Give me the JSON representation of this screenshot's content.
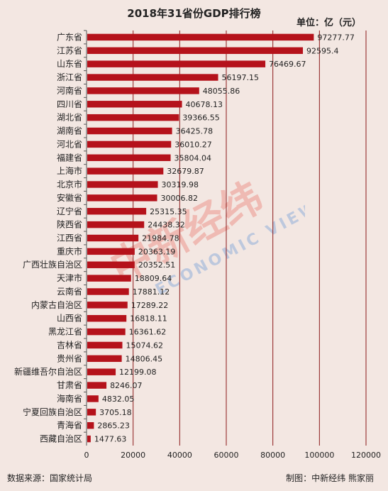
{
  "header": {
    "title": "2018年31省份GDP排行榜",
    "unit": "单位：亿（元）"
  },
  "footer": {
    "source": "数据来源：国家统计局",
    "credit": "制图：中新经纬  熊家丽"
  },
  "watermark": {
    "text_cn": "中新经纬",
    "text_en": "ECONOMIC VIEW"
  },
  "colors": {
    "bar": "#b5121b",
    "background": "#f3e7e2",
    "grid": "#8b1a1a"
  },
  "chart_data": {
    "type": "bar",
    "orientation": "horizontal",
    "title": "2018年31省份GDP排行榜",
    "xlim": [
      0,
      120000
    ],
    "xticks": [
      0,
      20000,
      40000,
      60000,
      80000,
      100000,
      120000
    ],
    "xtick_labels": [
      "0",
      "20000",
      "40000",
      "60000",
      "80000",
      "100000",
      "120000"
    ],
    "grid": true,
    "categories": [
      "广东省",
      "江苏省",
      "山东省",
      "浙江省",
      "河南省",
      "四川省",
      "湖北省",
      "湖南省",
      "河北省",
      "福建省",
      "上海市",
      "北京市",
      "安徽省",
      "辽宁省",
      "陕西省",
      "江西省",
      "重庆市",
      "广西壮族自治区",
      "天津市",
      "云南省",
      "内蒙古自治区",
      "山西省",
      "黑龙江省",
      "吉林省",
      "贵州省",
      "新疆维吾尔自治区",
      "甘肃省",
      "海南省",
      "宁夏回族自治区",
      "青海省",
      "西藏自治区"
    ],
    "values": [
      97277.77,
      92595.4,
      76469.67,
      56197.15,
      48055.86,
      40678.13,
      39366.55,
      36425.78,
      36010.27,
      35804.04,
      32679.87,
      30319.98,
      30006.82,
      25315.35,
      24438.32,
      21984.78,
      20363.19,
      20352.51,
      18809.64,
      17881.12,
      17289.22,
      16818.11,
      16361.62,
      15074.62,
      14806.45,
      12199.08,
      8246.07,
      4832.05,
      3705.18,
      2865.23,
      1477.63
    ],
    "value_labels": [
      "97277.77",
      "92595.4",
      "76469.67",
      "56197.15",
      "48055.86",
      "40678.13",
      "39366.55",
      "36425.78",
      "36010.27",
      "35804.04",
      "32679.87",
      "30319.98",
      "30006.82",
      "25315.35",
      "24438.32",
      "21984.78",
      "20363.19",
      "20352.51",
      "18809.64",
      "17881.12",
      "17289.22",
      "16818.11",
      "16361.62",
      "15074.62",
      "14806.45",
      "12199.08",
      "8246.07",
      "4832.05",
      "3705.18",
      "2865.23",
      "1477.63"
    ]
  }
}
